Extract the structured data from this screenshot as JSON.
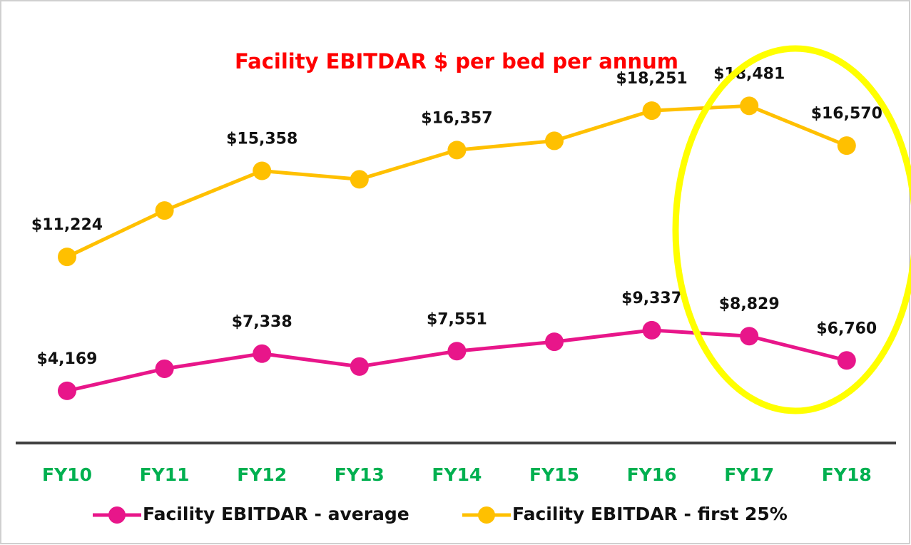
{
  "chart_data": {
    "type": "line",
    "title": "Facility EBITDAR $ per bed per annum",
    "categories": [
      "FY10",
      "FY11",
      "FY12",
      "FY13",
      "FY14",
      "FY15",
      "FY16",
      "FY17",
      "FY18"
    ],
    "ylim": [
      3000,
      20140
    ],
    "y2lim": [
      1000,
      31400
    ],
    "series": [
      {
        "name": "Facility EBITDAR - average",
        "color": "#e8168a",
        "axis": "y2",
        "values": [
          4169,
          6050,
          7338,
          6240,
          7551,
          8350,
          9337,
          8829,
          6760
        ],
        "value_labels": [
          "$4,169",
          null,
          "$7,338",
          null,
          "$7,551",
          null,
          "$9,337",
          "$8,829",
          "$6,760"
        ]
      },
      {
        "name": "Facility EBITDAR - first 25%",
        "color": "#ffc000",
        "values": [
          11224,
          13450,
          15358,
          14950,
          16357,
          16800,
          18251,
          18481,
          16570
        ],
        "value_labels": [
          "$11,224",
          null,
          "$15,358",
          null,
          "$16,357",
          null,
          "$18,251",
          "$18,481",
          "$16,570"
        ]
      }
    ]
  }
}
